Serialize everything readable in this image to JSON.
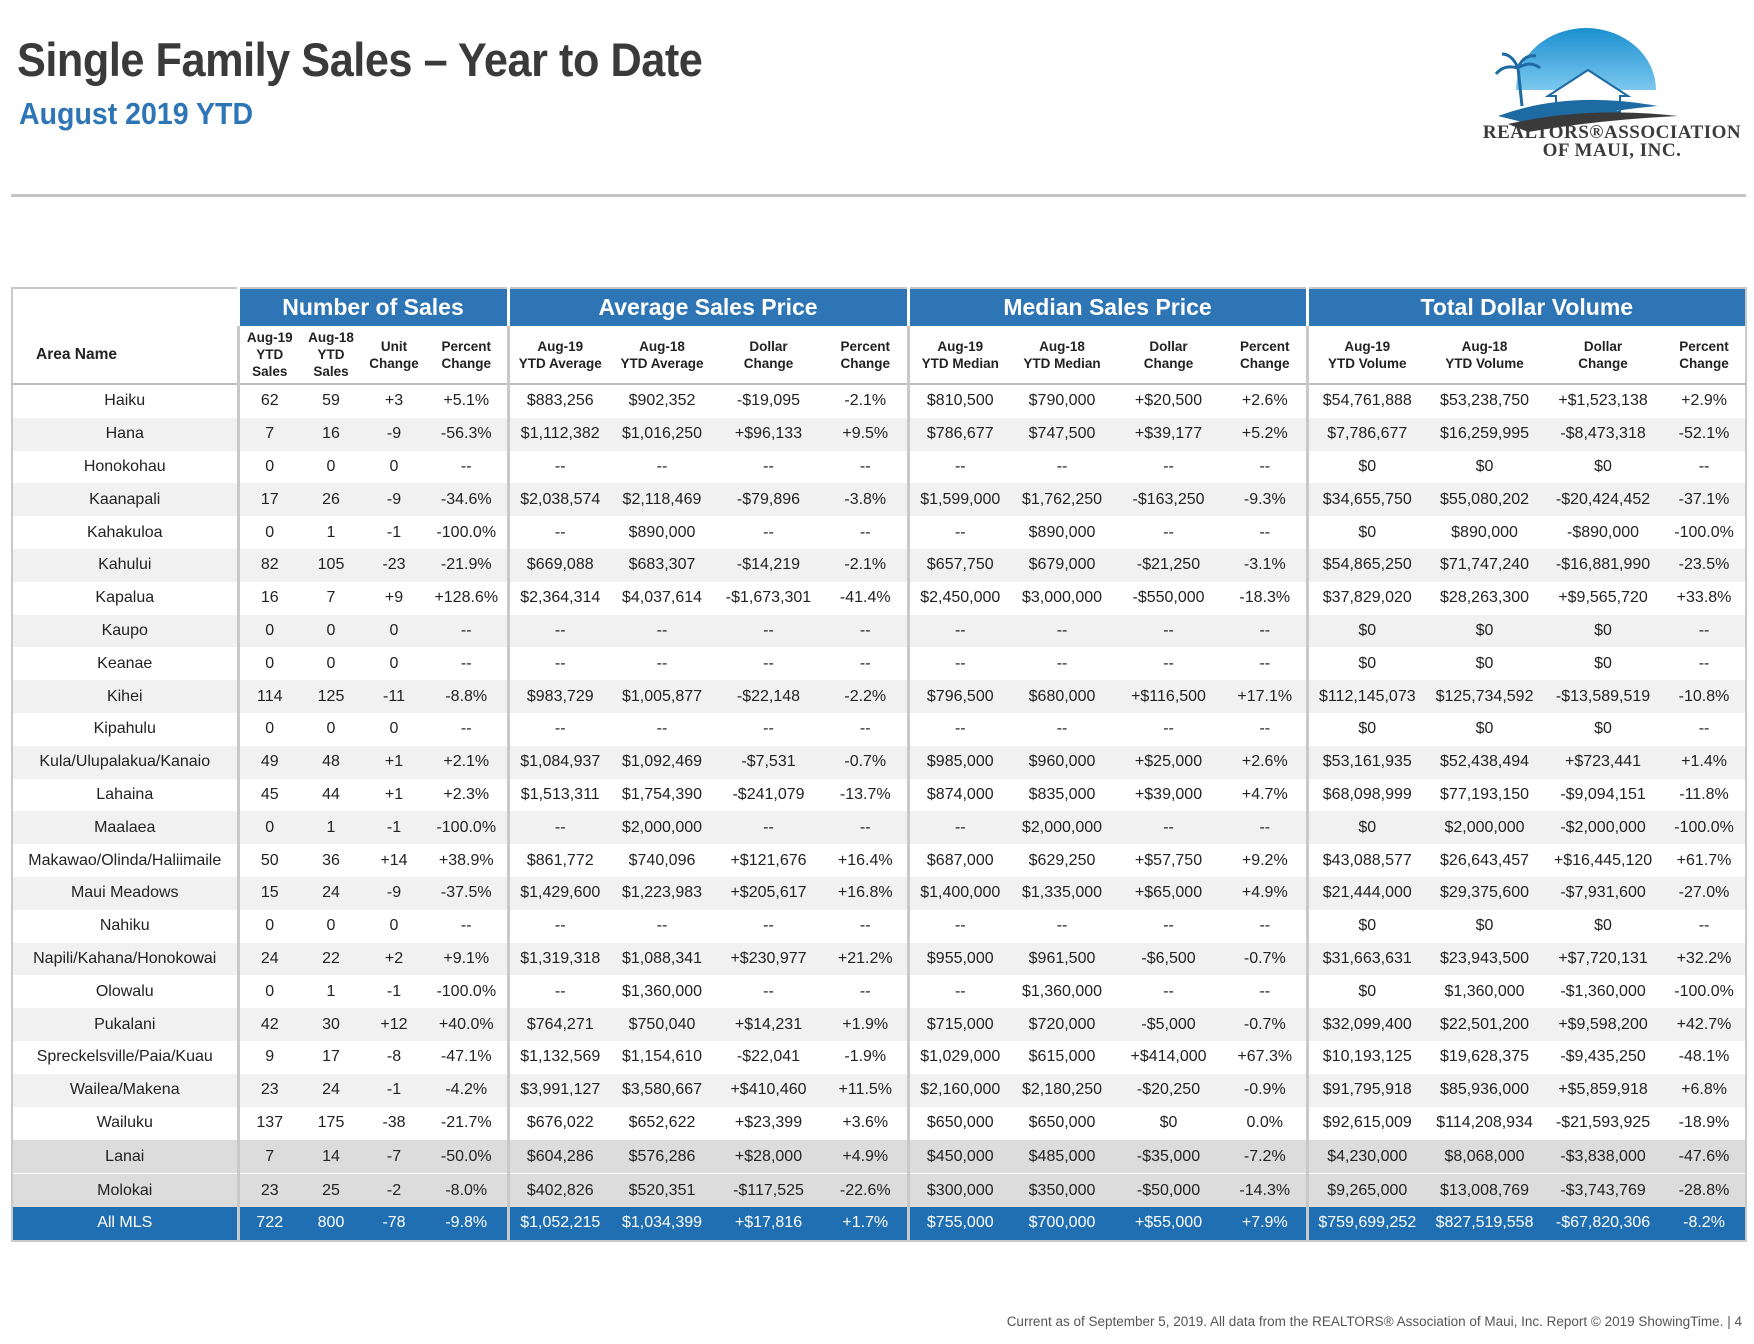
{
  "header": {
    "title": "Single Family Sales – Year to Date",
    "subtitle": "August 2019 YTD",
    "logo_lines": [
      "REALTORS®ASSOCIATION",
      "OF MAUI, INC."
    ]
  },
  "table": {
    "area_header": "Area Name",
    "groups": [
      "Number of Sales",
      "Average Sales Price",
      "Median Sales Price",
      "Total Dollar Volume"
    ],
    "columns": [
      [
        "Aug-19",
        "YTD",
        "Sales"
      ],
      [
        "Aug-18",
        "YTD",
        "Sales"
      ],
      [
        "Unit",
        "Change"
      ],
      [
        "Percent",
        "Change"
      ],
      [
        "Aug-19",
        "YTD Average"
      ],
      [
        "Aug-18",
        "YTD Average"
      ],
      [
        "Dollar",
        "Change"
      ],
      [
        "Percent",
        "Change"
      ],
      [
        "Aug-19",
        "YTD Median"
      ],
      [
        "Aug-18",
        "YTD Median"
      ],
      [
        "Dollar",
        "Change"
      ],
      [
        "Percent",
        "Change"
      ],
      [
        "Aug-19",
        "YTD Volume"
      ],
      [
        "Aug-18",
        "YTD Volume"
      ],
      [
        "Dollar",
        "Change"
      ],
      [
        "Percent",
        "Change"
      ]
    ],
    "rows": [
      [
        "Haiku",
        "62",
        "59",
        "+3",
        "+5.1%",
        "$883,256",
        "$902,352",
        "-$19,095",
        "-2.1%",
        "$810,500",
        "$790,000",
        "+$20,500",
        "+2.6%",
        "$54,761,888",
        "$53,238,750",
        "+$1,523,138",
        "+2.9%"
      ],
      [
        "Hana",
        "7",
        "16",
        "-9",
        "-56.3%",
        "$1,112,382",
        "$1,016,250",
        "+$96,133",
        "+9.5%",
        "$786,677",
        "$747,500",
        "+$39,177",
        "+5.2%",
        "$7,786,677",
        "$16,259,995",
        "-$8,473,318",
        "-52.1%"
      ],
      [
        "Honokohau",
        "0",
        "0",
        "0",
        "--",
        "--",
        "--",
        "--",
        "--",
        "--",
        "--",
        "--",
        "--",
        "$0",
        "$0",
        "$0",
        "--"
      ],
      [
        "Kaanapali",
        "17",
        "26",
        "-9",
        "-34.6%",
        "$2,038,574",
        "$2,118,469",
        "-$79,896",
        "-3.8%",
        "$1,599,000",
        "$1,762,250",
        "-$163,250",
        "-9.3%",
        "$34,655,750",
        "$55,080,202",
        "-$20,424,452",
        "-37.1%"
      ],
      [
        "Kahakuloa",
        "0",
        "1",
        "-1",
        "-100.0%",
        "--",
        "$890,000",
        "--",
        "--",
        "--",
        "$890,000",
        "--",
        "--",
        "$0",
        "$890,000",
        "-$890,000",
        "-100.0%"
      ],
      [
        "Kahului",
        "82",
        "105",
        "-23",
        "-21.9%",
        "$669,088",
        "$683,307",
        "-$14,219",
        "-2.1%",
        "$657,750",
        "$679,000",
        "-$21,250",
        "-3.1%",
        "$54,865,250",
        "$71,747,240",
        "-$16,881,990",
        "-23.5%"
      ],
      [
        "Kapalua",
        "16",
        "7",
        "+9",
        "+128.6%",
        "$2,364,314",
        "$4,037,614",
        "-$1,673,301",
        "-41.4%",
        "$2,450,000",
        "$3,000,000",
        "-$550,000",
        "-18.3%",
        "$37,829,020",
        "$28,263,300",
        "+$9,565,720",
        "+33.8%"
      ],
      [
        "Kaupo",
        "0",
        "0",
        "0",
        "--",
        "--",
        "--",
        "--",
        "--",
        "--",
        "--",
        "--",
        "--",
        "$0",
        "$0",
        "$0",
        "--"
      ],
      [
        "Keanae",
        "0",
        "0",
        "0",
        "--",
        "--",
        "--",
        "--",
        "--",
        "--",
        "--",
        "--",
        "--",
        "$0",
        "$0",
        "$0",
        "--"
      ],
      [
        "Kihei",
        "114",
        "125",
        "-11",
        "-8.8%",
        "$983,729",
        "$1,005,877",
        "-$22,148",
        "-2.2%",
        "$796,500",
        "$680,000",
        "+$116,500",
        "+17.1%",
        "$112,145,073",
        "$125,734,592",
        "-$13,589,519",
        "-10.8%"
      ],
      [
        "Kipahulu",
        "0",
        "0",
        "0",
        "--",
        "--",
        "--",
        "--",
        "--",
        "--",
        "--",
        "--",
        "--",
        "$0",
        "$0",
        "$0",
        "--"
      ],
      [
        "Kula/Ulupalakua/Kanaio",
        "49",
        "48",
        "+1",
        "+2.1%",
        "$1,084,937",
        "$1,092,469",
        "-$7,531",
        "-0.7%",
        "$985,000",
        "$960,000",
        "+$25,000",
        "+2.6%",
        "$53,161,935",
        "$52,438,494",
        "+$723,441",
        "+1.4%"
      ],
      [
        "Lahaina",
        "45",
        "44",
        "+1",
        "+2.3%",
        "$1,513,311",
        "$1,754,390",
        "-$241,079",
        "-13.7%",
        "$874,000",
        "$835,000",
        "+$39,000",
        "+4.7%",
        "$68,098,999",
        "$77,193,150",
        "-$9,094,151",
        "-11.8%"
      ],
      [
        "Maalaea",
        "0",
        "1",
        "-1",
        "-100.0%",
        "--",
        "$2,000,000",
        "--",
        "--",
        "--",
        "$2,000,000",
        "--",
        "--",
        "$0",
        "$2,000,000",
        "-$2,000,000",
        "-100.0%"
      ],
      [
        "Makawao/Olinda/Haliimaile",
        "50",
        "36",
        "+14",
        "+38.9%",
        "$861,772",
        "$740,096",
        "+$121,676",
        "+16.4%",
        "$687,000",
        "$629,250",
        "+$57,750",
        "+9.2%",
        "$43,088,577",
        "$26,643,457",
        "+$16,445,120",
        "+61.7%"
      ],
      [
        "Maui Meadows",
        "15",
        "24",
        "-9",
        "-37.5%",
        "$1,429,600",
        "$1,223,983",
        "+$205,617",
        "+16.8%",
        "$1,400,000",
        "$1,335,000",
        "+$65,000",
        "+4.9%",
        "$21,444,000",
        "$29,375,600",
        "-$7,931,600",
        "-27.0%"
      ],
      [
        "Nahiku",
        "0",
        "0",
        "0",
        "--",
        "--",
        "--",
        "--",
        "--",
        "--",
        "--",
        "--",
        "--",
        "$0",
        "$0",
        "$0",
        "--"
      ],
      [
        "Napili/Kahana/Honokowai",
        "24",
        "22",
        "+2",
        "+9.1%",
        "$1,319,318",
        "$1,088,341",
        "+$230,977",
        "+21.2%",
        "$955,000",
        "$961,500",
        "-$6,500",
        "-0.7%",
        "$31,663,631",
        "$23,943,500",
        "+$7,720,131",
        "+32.2%"
      ],
      [
        "Olowalu",
        "0",
        "1",
        "-1",
        "-100.0%",
        "--",
        "$1,360,000",
        "--",
        "--",
        "--",
        "$1,360,000",
        "--",
        "--",
        "$0",
        "$1,360,000",
        "-$1,360,000",
        "-100.0%"
      ],
      [
        "Pukalani",
        "42",
        "30",
        "+12",
        "+40.0%",
        "$764,271",
        "$750,040",
        "+$14,231",
        "+1.9%",
        "$715,000",
        "$720,000",
        "-$5,000",
        "-0.7%",
        "$32,099,400",
        "$22,501,200",
        "+$9,598,200",
        "+42.7%"
      ],
      [
        "Spreckelsville/Paia/Kuau",
        "9",
        "17",
        "-8",
        "-47.1%",
        "$1,132,569",
        "$1,154,610",
        "-$22,041",
        "-1.9%",
        "$1,029,000",
        "$615,000",
        "+$414,000",
        "+67.3%",
        "$10,193,125",
        "$19,628,375",
        "-$9,435,250",
        "-48.1%"
      ],
      [
        "Wailea/Makena",
        "23",
        "24",
        "-1",
        "-4.2%",
        "$3,991,127",
        "$3,580,667",
        "+$410,460",
        "+11.5%",
        "$2,160,000",
        "$2,180,250",
        "-$20,250",
        "-0.9%",
        "$91,795,918",
        "$85,936,000",
        "+$5,859,918",
        "+6.8%"
      ],
      [
        "Wailuku",
        "137",
        "175",
        "-38",
        "-21.7%",
        "$676,022",
        "$652,622",
        "+$23,399",
        "+3.6%",
        "$650,000",
        "$650,000",
        "$0",
        "0.0%",
        "$92,615,009",
        "$114,208,934",
        "-$21,593,925",
        "-18.9%"
      ]
    ],
    "island_rows": [
      [
        "Lanai",
        "7",
        "14",
        "-7",
        "-50.0%",
        "$604,286",
        "$576,286",
        "+$28,000",
        "+4.9%",
        "$450,000",
        "$485,000",
        "-$35,000",
        "-7.2%",
        "$4,230,000",
        "$8,068,000",
        "-$3,838,000",
        "-47.6%"
      ],
      [
        "Molokai",
        "23",
        "25",
        "-2",
        "-8.0%",
        "$402,826",
        "$520,351",
        "-$117,525",
        "-22.6%",
        "$300,000",
        "$350,000",
        "-$50,000",
        "-14.3%",
        "$9,265,000",
        "$13,008,769",
        "-$3,743,769",
        "-28.8%"
      ]
    ],
    "total_row": [
      "All MLS",
      "722",
      "800",
      "-78",
      "-9.8%",
      "$1,052,215",
      "$1,034,399",
      "+$17,816",
      "+1.7%",
      "$755,000",
      "$700,000",
      "+$55,000",
      "+7.9%",
      "$759,699,252",
      "$827,519,558",
      "-$67,820,306",
      "-8.2%"
    ]
  },
  "footer": {
    "text": "Current as of September 5, 2019. All data from the REALTORS® Association of Maui, Inc. Report © 2019 ShowingTime.",
    "separator": "|",
    "page": "4"
  }
}
